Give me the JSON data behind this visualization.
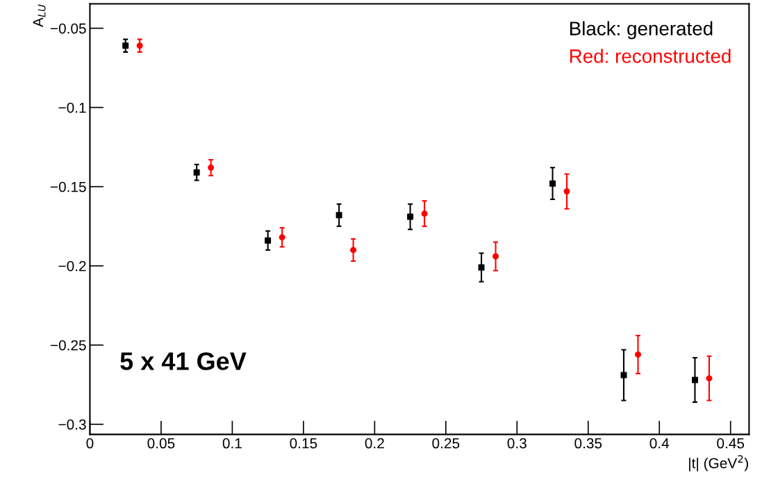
{
  "chart_data": {
    "type": "scatter",
    "xlabel": "|t| (GeV$^{2}$)",
    "ylabel": "A$_{LU}$",
    "annotations": [
      "5 x 41 GeV"
    ],
    "xlim": [
      0,
      0.463
    ],
    "ylim": [
      -0.3064,
      -0.0346
    ],
    "xticks": [
      0,
      0.05,
      0.1,
      0.15,
      0.2,
      0.25,
      0.3,
      0.35,
      0.4,
      0.45
    ],
    "yticks": [
      {
        "value": -0.3,
        "label": "−0.3"
      },
      {
        "value": -0.25,
        "label": "−0.25"
      },
      {
        "value": -0.2,
        "label": "−0.2"
      },
      {
        "value": -0.15,
        "label": "−0.15"
      },
      {
        "value": -0.1,
        "label": "−0.1"
      },
      {
        "value": -0.05,
        "label": "−0.05"
      }
    ],
    "grid": false,
    "legend": "top right",
    "series": [
      {
        "name": "Black: generated",
        "color": "#000000",
        "marker": "square",
        "x": [
          0.025,
          0.075,
          0.125,
          0.175,
          0.225,
          0.275,
          0.325,
          0.375,
          0.425
        ],
        "values": [
          -0.061,
          -0.141,
          -0.184,
          -0.168,
          -0.169,
          -0.201,
          -0.148,
          -0.269,
          -0.272
        ],
        "errors": [
          0.004,
          0.005,
          0.006,
          0.007,
          0.008,
          0.009,
          0.01,
          0.016,
          0.014
        ]
      },
      {
        "name": "Red: reconstructed",
        "color": "#ff0000",
        "marker": "circle",
        "x": [
          0.035,
          0.085,
          0.135,
          0.185,
          0.235,
          0.285,
          0.335,
          0.385,
          0.435
        ],
        "values": [
          -0.061,
          -0.138,
          -0.182,
          -0.19,
          -0.167,
          -0.194,
          -0.153,
          -0.256,
          -0.271
        ],
        "errors": [
          0.004,
          0.005,
          0.006,
          0.007,
          0.008,
          0.009,
          0.011,
          0.012,
          0.014
        ]
      }
    ]
  }
}
